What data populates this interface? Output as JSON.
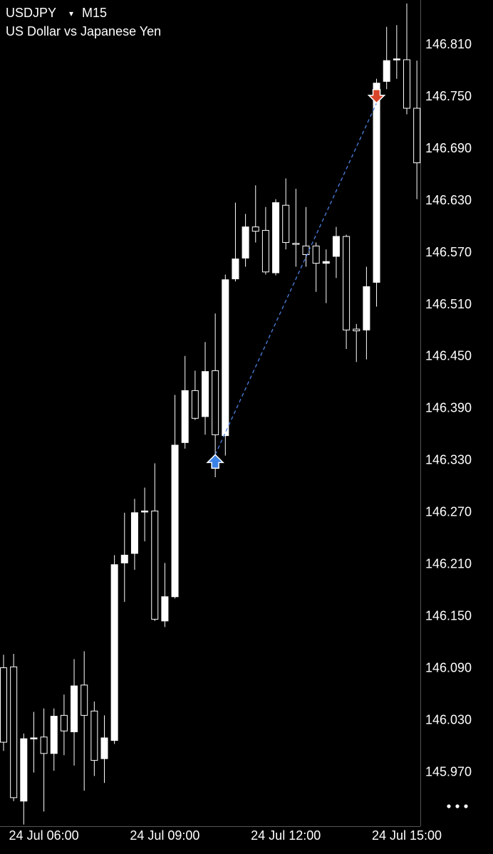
{
  "chart_data": {
    "type": "candlestick",
    "title": "USDJPY",
    "dropdown": "▾",
    "timeframe": "M15",
    "subtitle": "US Dollar vs Japanese Yen",
    "categories": [
      null,
      null,
      null,
      null,
      "24 Jul 06:00",
      null,
      null,
      null,
      null,
      null,
      null,
      null,
      null,
      null,
      null,
      null,
      "24 Jul 09:00",
      null,
      null,
      null,
      null,
      null,
      null,
      null,
      null,
      null,
      null,
      null,
      "24 Jul 12:00",
      null,
      null,
      null,
      null,
      null,
      null,
      null,
      null,
      null,
      null,
      null,
      "24 Jul 15:00",
      null
    ],
    "open": [
      146.091,
      146.092,
      145.937,
      146.009,
      146.011,
      145.992,
      146.036,
      146.017,
      146.071,
      146.041,
      145.986,
      146.007,
      146.212,
      146.223,
      146.271,
      146.272,
      146.145,
      146.173,
      146.351,
      146.411,
      146.381,
      146.434,
      146.359,
      146.54,
      146.564,
      146.6,
      146.596,
      146.547,
      146.625,
      146.581,
      146.578,
      146.578,
      146.558,
      146.566,
      146.589,
      146.482,
      146.481,
      146.536,
      146.768,
      146.793,
      146.793,
      146.737
    ],
    "high": [
      146.106,
      146.107,
      146.015,
      146.04,
      146.044,
      146.044,
      146.06,
      146.101,
      146.11,
      146.052,
      146.036,
      146.221,
      146.27,
      146.286,
      146.299,
      146.327,
      146.212,
      146.406,
      146.451,
      146.434,
      146.467,
      146.5,
      146.545,
      146.628,
      146.615,
      146.648,
      146.623,
      146.632,
      146.656,
      146.644,
      146.623,
      146.582,
      146.574,
      146.6,
      146.591,
      146.488,
      146.554,
      146.771,
      146.831,
      146.833,
      146.858,
      146.792
    ],
    "low": [
      145.995,
      145.937,
      145.91,
      145.97,
      145.925,
      145.972,
      145.99,
      145.978,
      145.949,
      145.966,
      145.958,
      146.003,
      146.167,
      146.204,
      146.237,
      146.145,
      146.138,
      146.171,
      146.344,
      146.377,
      146.36,
      146.311,
      146.336,
      146.537,
      146.554,
      146.582,
      146.545,
      146.544,
      146.574,
      146.554,
      146.554,
      146.525,
      146.512,
      146.541,
      146.459,
      146.444,
      146.447,
      146.508,
      146.759,
      146.771,
      146.73,
      146.632
    ],
    "close": [
      146.005,
      145.941,
      146.009,
      146.01,
      145.992,
      146.035,
      146.018,
      146.07,
      146.036,
      145.984,
      146.01,
      146.21,
      146.221,
      146.27,
      146.272,
      146.147,
      146.173,
      146.348,
      146.411,
      146.379,
      146.433,
      146.36,
      146.539,
      146.563,
      146.6,
      146.595,
      146.548,
      146.628,
      146.582,
      146.58,
      146.568,
      146.558,
      146.56,
      146.589,
      146.481,
      146.48,
      146.531,
      146.766,
      146.792,
      146.794,
      146.737,
      146.674
    ],
    "color": "#ffffff",
    "ylim": [
      145.908,
      146.862
    ],
    "yticks": [
      {
        "value": 146.81,
        "label": "146.810"
      },
      {
        "value": 146.75,
        "label": "146.750"
      },
      {
        "value": 146.69,
        "label": "146.690"
      },
      {
        "value": 146.63,
        "label": "146.630"
      },
      {
        "value": 146.57,
        "label": "146.570"
      },
      {
        "value": 146.51,
        "label": "146.510"
      },
      {
        "value": 146.45,
        "label": "146.450"
      },
      {
        "value": 146.39,
        "label": "146.390"
      },
      {
        "value": 146.33,
        "label": "146.330"
      },
      {
        "value": 146.27,
        "label": "146.270"
      },
      {
        "value": 146.21,
        "label": "146.210"
      },
      {
        "value": 146.15,
        "label": "146.150"
      },
      {
        "value": 146.09,
        "label": "146.090"
      },
      {
        "value": 146.03,
        "label": "146.030"
      },
      {
        "value": 145.97,
        "label": "145.970"
      }
    ],
    "grid": false,
    "trades": [
      {
        "side": "buy",
        "index": 21,
        "price": 146.337,
        "color": "#3b82e6"
      },
      {
        "side": "sell",
        "index": 37,
        "price": 146.743,
        "color": "#d9452b"
      }
    ],
    "trade_line_color": "#4d7fe0"
  }
}
